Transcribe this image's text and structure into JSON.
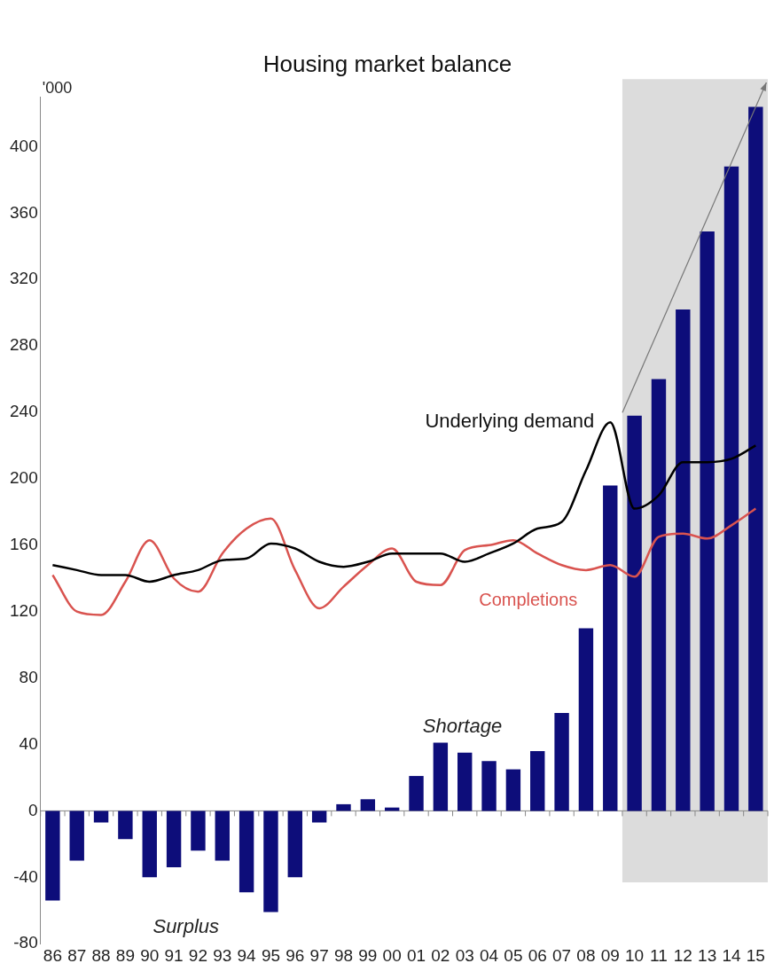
{
  "chart_data": {
    "type": "bar",
    "title": "Housing market balance",
    "ylabel": "'000",
    "categories": [
      "86",
      "87",
      "88",
      "89",
      "90",
      "91",
      "92",
      "93",
      "94",
      "95",
      "96",
      "97",
      "98",
      "99",
      "00",
      "01",
      "02",
      "03",
      "04",
      "05",
      "06",
      "07",
      "08",
      "09",
      "10",
      "11",
      "12",
      "13",
      "14",
      "15"
    ],
    "series": [
      {
        "color": "#0d0d7a",
        "values": [
          -54,
          -30,
          -7,
          -17,
          -40,
          -34,
          -24,
          -30,
          -49,
          -61,
          -40,
          -7,
          4,
          7,
          2,
          21,
          41,
          35,
          30,
          25,
          36,
          59,
          110,
          196,
          238,
          260,
          302,
          349,
          388,
          424
        ]
      },
      {
        "type": "line",
        "name": "Underlying demand",
        "color": "#000000",
        "values": [
          148,
          145,
          142,
          142,
          138,
          142,
          145,
          151,
          152,
          161,
          158,
          150,
          147,
          150,
          155,
          155,
          155,
          150,
          155,
          161,
          170,
          174,
          205,
          234,
          182,
          190,
          210,
          210,
          212,
          220
        ]
      },
      {
        "type": "line",
        "name": "Completions",
        "color": "#d9534f",
        "values": [
          142,
          120,
          118,
          138,
          163,
          140,
          132,
          155,
          170,
          176,
          145,
          122,
          135,
          148,
          158,
          138,
          136,
          157,
          160,
          163,
          155,
          148,
          145,
          148,
          141,
          165,
          167,
          164,
          172,
          182
        ]
      }
    ],
    "ylim": [
      -80,
      430
    ],
    "yticks": [
      -80,
      -40,
      0,
      40,
      80,
      120,
      160,
      200,
      240,
      280,
      320,
      360,
      400
    ],
    "legend": false,
    "marker": "none",
    "line_style": "solid",
    "bands": [
      {
        "axis": "x",
        "from": "10",
        "to": "15",
        "color": "#dcdcdc"
      }
    ],
    "annotations": [
      "Shortage",
      "Surplus"
    ]
  }
}
